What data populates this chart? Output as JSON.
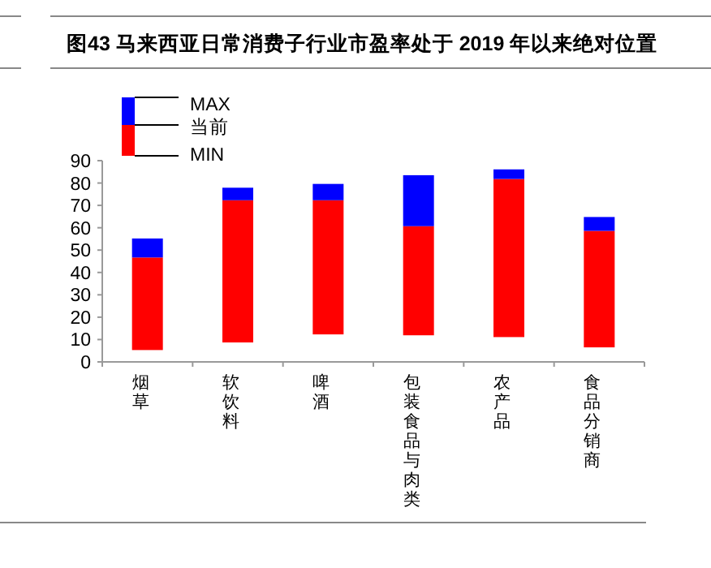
{
  "chart_data": {
    "type": "bar",
    "title": "图43 马来西亚日常消费子行业市盈率处于 2019 年以来绝对位置",
    "categories": [
      "烟草",
      "软饮料",
      "啤酒",
      "包装食品与肉类",
      "农产品",
      "食品分销商"
    ],
    "series": [
      {
        "color": "#ff0000",
        "base": [
          5.3,
          8.7,
          12.3,
          11.9,
          11.1,
          6.5
        ],
        "values": [
          41.4,
          63.6,
          60.0,
          48.8,
          70.7,
          52.1
        ]
      },
      {
        "color": "#0000ff",
        "base": [
          46.7,
          72.3,
          72.3,
          60.7,
          81.8,
          58.6
        ],
        "values": [
          8.5,
          5.6,
          7.3,
          22.8,
          4.3,
          6.2
        ]
      }
    ],
    "ylim": [
      0,
      90
    ],
    "yticks": [
      0,
      10,
      20,
      30,
      40,
      50,
      60,
      70,
      80,
      90
    ],
    "grid": false,
    "annotations": [
      "MAX",
      "当前",
      "MIN"
    ]
  }
}
